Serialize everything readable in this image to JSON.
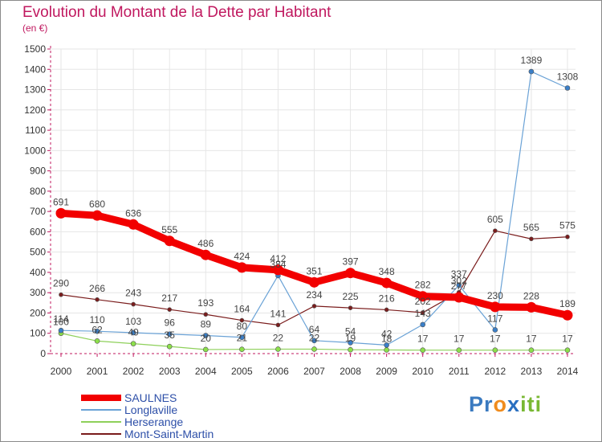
{
  "title": "Evolution du Montant de la Dette par Habitant",
  "unit": "(en €)",
  "logo": {
    "letters": [
      "P",
      "r",
      "o",
      "x",
      "i",
      "t",
      "i"
    ],
    "colors": [
      "#3a7ac0",
      "#3a7ac0",
      "#f08c1e",
      "#2a6fc0",
      "#79b833",
      "#79b833",
      "#79b833"
    ]
  },
  "colors": {
    "title": "#c0185f",
    "axis": "#c0185f",
    "grid": "#e6e6e6",
    "label": "#444444"
  },
  "chart_data": {
    "type": "line",
    "title": "Evolution du Montant de la Dette par Habitant",
    "ylabel": "(en €)",
    "xlabel": "",
    "ylim": [
      0,
      1500
    ],
    "y_ticks": [
      0,
      100,
      200,
      300,
      400,
      500,
      600,
      700,
      800,
      900,
      1000,
      1100,
      1200,
      1300,
      1400,
      1500
    ],
    "grid": true,
    "legend_position": "bottom-left",
    "categories": [
      "2000",
      "2001",
      "2002",
      "2003",
      "2004",
      "2005",
      "2006",
      "2007",
      "2008",
      "2009",
      "2010",
      "2011",
      "2012",
      "2013",
      "2014"
    ],
    "series": [
      {
        "name": "SAULNES",
        "color": "#f20000",
        "line_color": "#f20000",
        "width": 9,
        "marker": 13,
        "values": [
          691,
          680,
          636,
          555,
          486,
          424,
          412,
          351,
          397,
          348,
          282,
          277,
          230,
          228,
          189
        ],
        "labels": [
          "691",
          "680",
          "636",
          "555",
          "486",
          "424",
          "412",
          "351",
          "397",
          "348",
          "282",
          "277",
          "230",
          "228",
          "189"
        ]
      },
      {
        "name": "Longlaville",
        "color": "#3a7fc8",
        "line_color": "#6aa2d6",
        "width": 1.2,
        "marker": 6,
        "values": [
          114,
          110,
          103,
          96,
          89,
          80,
          384,
          64,
          54,
          42,
          143,
          337,
          117,
          1389,
          1308
        ],
        "labels": [
          "114",
          "110",
          "103",
          "96",
          "89",
          "80",
          "384",
          "64",
          "54",
          "42",
          "143",
          "337",
          "117",
          "1389",
          "1308"
        ]
      },
      {
        "name": "Herserange",
        "color": "#8ce04a",
        "line_color": "#8ed05a",
        "width": 1.2,
        "marker": 6,
        "values": [
          100,
          62,
          49,
          35,
          20,
          21,
          22,
          22,
          19,
          18,
          17,
          17,
          17,
          17,
          17
        ],
        "labels": [
          "100",
          "62",
          "49",
          "35",
          "20",
          "21",
          "22",
          "22",
          "19",
          "18",
          "17",
          "17",
          "17",
          "17",
          "17"
        ]
      },
      {
        "name": "Mont-Saint-Martin",
        "color": "#7a1c1c",
        "line_color": "#7a1c1c",
        "width": 1.2,
        "marker": 5,
        "values": [
          290,
          266,
          243,
          217,
          193,
          164,
          141,
          234,
          225,
          216,
          202,
          302,
          605,
          565,
          575
        ],
        "labels": [
          "290",
          "266",
          "243",
          "217",
          "193",
          "164",
          "141",
          "234",
          "225",
          "216",
          "202",
          "302",
          "605",
          "565",
          "575"
        ]
      }
    ]
  }
}
